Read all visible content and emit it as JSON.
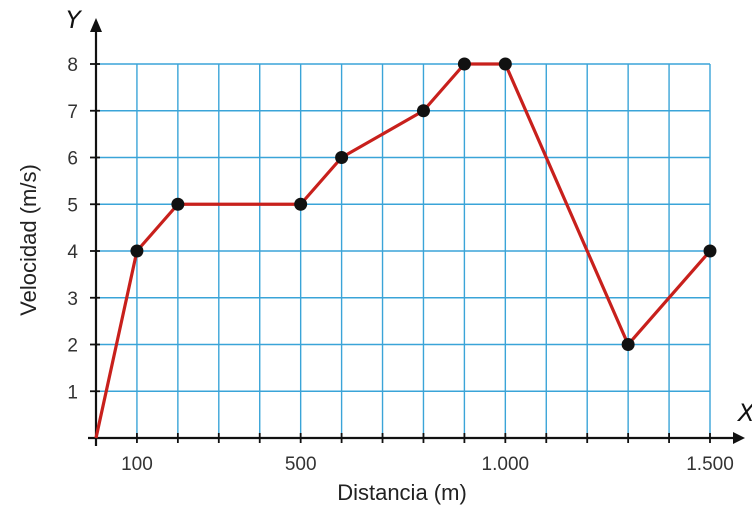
{
  "chart_data": {
    "type": "line",
    "x_axis_letter": "X",
    "y_axis_letter": "Y",
    "xlabel": "Distancia (m)",
    "ylabel": "Velocidad (m/s)",
    "xlim": [
      0,
      1500
    ],
    "ylim": [
      0,
      8
    ],
    "x_ticks": [
      {
        "value": 100,
        "label": "100"
      },
      {
        "value": 500,
        "label": "500"
      },
      {
        "value": 1000,
        "label": "1.000"
      },
      {
        "value": 1500,
        "label": "1.500"
      }
    ],
    "y_ticks": [
      {
        "value": 1,
        "label": "1"
      },
      {
        "value": 2,
        "label": "2"
      },
      {
        "value": 3,
        "label": "3"
      },
      {
        "value": 4,
        "label": "4"
      },
      {
        "value": 5,
        "label": "5"
      },
      {
        "value": 6,
        "label": "6"
      },
      {
        "value": 7,
        "label": "7"
      },
      {
        "value": 8,
        "label": "8"
      }
    ],
    "grid": true,
    "grid_x_step": 100,
    "grid_y_step": 1,
    "series": [
      {
        "points": [
          {
            "x": 0,
            "y": 0
          },
          {
            "x": 100,
            "y": 4
          },
          {
            "x": 200,
            "y": 5
          },
          {
            "x": 500,
            "y": 5
          },
          {
            "x": 600,
            "y": 6
          },
          {
            "x": 800,
            "y": 7
          },
          {
            "x": 900,
            "y": 8
          },
          {
            "x": 1000,
            "y": 8
          },
          {
            "x": 1300,
            "y": 2
          },
          {
            "x": 1500,
            "y": 4
          }
        ],
        "marked_from_index": 1
      }
    ],
    "colors": {
      "grid": "#3aa4d8",
      "line": "#c8201c",
      "marker": "#111111",
      "axis": "#111111"
    }
  }
}
